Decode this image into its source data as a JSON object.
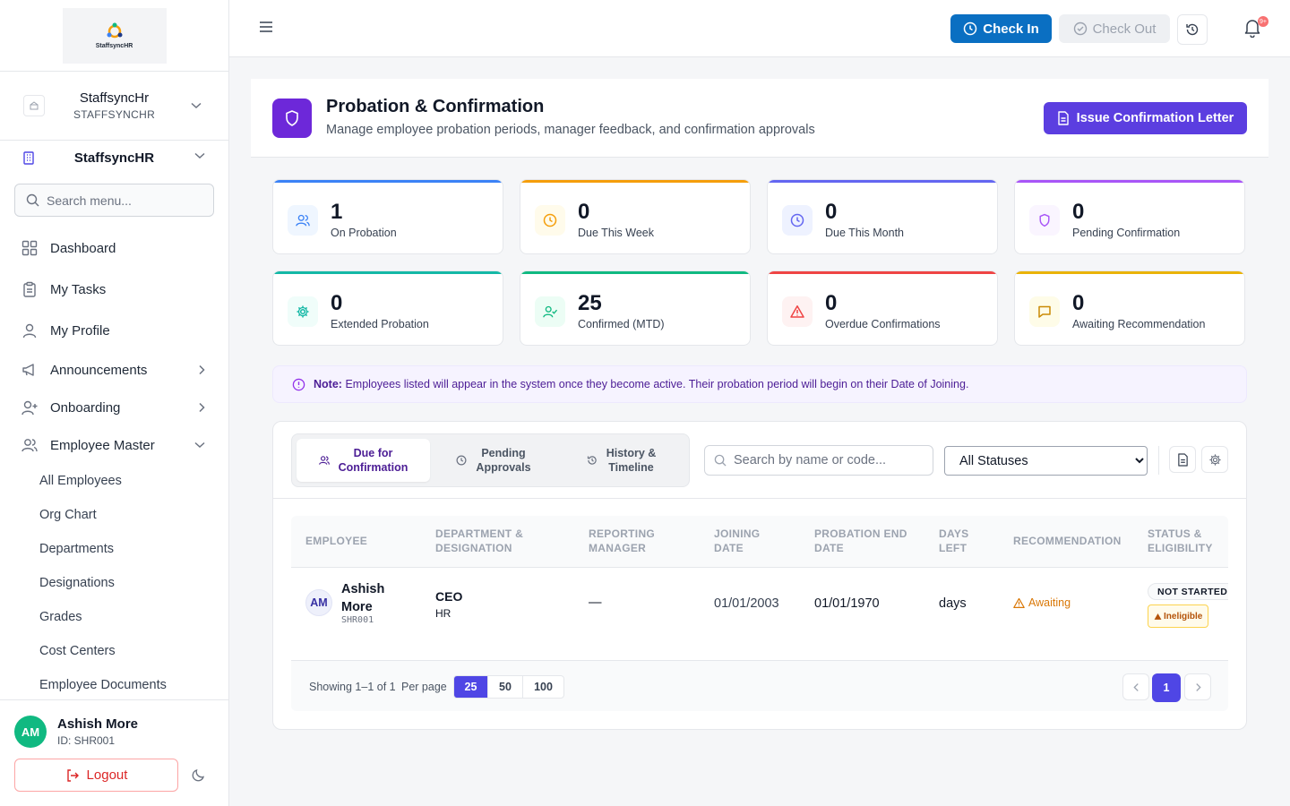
{
  "sidebar": {
    "logo_text": "StaffsyncHR",
    "org": {
      "name": "StaffsyncHr",
      "code": "STAFFSYNCHR"
    },
    "company": "StaffsyncHR",
    "search_placeholder": "Search menu...",
    "items": [
      {
        "label": "Dashboard",
        "icon": "dashboard-icon"
      },
      {
        "label": "My Tasks",
        "icon": "clipboard-icon"
      },
      {
        "label": "My Profile",
        "icon": "user-icon"
      },
      {
        "label": "Announcements",
        "icon": "megaphone-icon"
      },
      {
        "label": "Onboarding",
        "icon": "user-plus-icon"
      },
      {
        "label": "Employee Master",
        "icon": "users-icon"
      }
    ],
    "sub_items": [
      "All Employees",
      "Org Chart",
      "Departments",
      "Designations",
      "Grades",
      "Cost Centers",
      "Employee Documents"
    ],
    "user": {
      "initials": "AM",
      "name": "Ashish More",
      "id": "ID: SHR001"
    },
    "logout_label": "Logout"
  },
  "topbar": {
    "check_in": "Check In",
    "check_out": "Check Out",
    "notification_count": "9+"
  },
  "header": {
    "title": "Probation & Confirmation",
    "subtitle": "Manage employee probation periods, manager feedback, and confirmation approvals",
    "issue_button": "Issue Confirmation Letter"
  },
  "stats": [
    {
      "value": "1",
      "label": "On Probation",
      "color": "#3b82f6"
    },
    {
      "value": "0",
      "label": "Due This Week",
      "color": "#f59e0b"
    },
    {
      "value": "0",
      "label": "Due This Month",
      "color": "#6366f1"
    },
    {
      "value": "0",
      "label": "Pending Confirmation",
      "color": "#a855f7"
    },
    {
      "value": "0",
      "label": "Extended Probation",
      "color": "#14b8a6"
    },
    {
      "value": "25",
      "label": "Confirmed (MTD)",
      "color": "#10b981"
    },
    {
      "value": "0",
      "label": "Overdue Confirmations",
      "color": "#ef4444"
    },
    {
      "value": "0",
      "label": "Awaiting Recommendation",
      "color": "#eab308"
    }
  ],
  "note": {
    "prefix": "Note:",
    "text": "Employees listed will appear in the system once they become active. Their probation period will begin on their Date of Joining."
  },
  "tabs": [
    {
      "line1": "Due for",
      "line2": "Confirmation"
    },
    {
      "line1": "Pending",
      "line2": "Approvals"
    },
    {
      "line1": "History &",
      "line2": "Timeline"
    }
  ],
  "filters": {
    "search_placeholder": "Search by name or code...",
    "status_selected": "All Statuses"
  },
  "table": {
    "headers": [
      {
        "line1": "EMPLOYEE",
        "line2": ""
      },
      {
        "line1": "DEPARTMENT &",
        "line2": "DESIGNATION"
      },
      {
        "line1": "REPORTING",
        "line2": "MANAGER"
      },
      {
        "line1": "JOINING",
        "line2": "DATE"
      },
      {
        "line1": "PROBATION END",
        "line2": "DATE"
      },
      {
        "line1": "DAYS",
        "line2": "LEFT"
      },
      {
        "line1": "RECOMMENDATION",
        "line2": ""
      },
      {
        "line1": "STATUS &",
        "line2": "ELIGIBILITY"
      }
    ],
    "rows": [
      {
        "initials": "AM",
        "first_name": "Ashish",
        "last_name": "More",
        "code": "SHR001",
        "designation": "CEO",
        "department": "HR",
        "manager": "—",
        "joining_date": "01/01/2003",
        "probation_end": "01/01/1970",
        "days_left": "days",
        "recommendation": "Awaiting",
        "status": "NOT STARTED",
        "eligibility": "Ineligible"
      }
    ]
  },
  "pagination": {
    "showing": "Showing 1–1 of 1",
    "per_page_label": "Per page",
    "options": [
      "25",
      "50",
      "100"
    ],
    "current_page": "1"
  }
}
